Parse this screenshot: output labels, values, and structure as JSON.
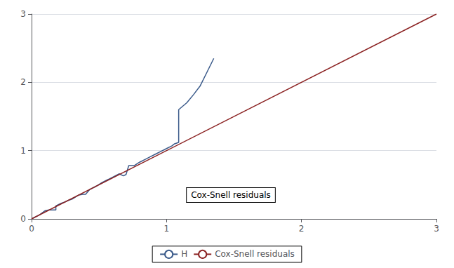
{
  "chart_data": {
    "type": "line",
    "series": [
      {
        "name": "H",
        "color": "#3a5a8a",
        "x": [
          0.0,
          0.06,
          0.1,
          0.13,
          0.18,
          0.18,
          0.22,
          0.25,
          0.27,
          0.3,
          0.35,
          0.38,
          0.4,
          0.43,
          0.46,
          0.48,
          0.52,
          0.55,
          0.58,
          0.62,
          0.65,
          0.68,
          0.7,
          0.72,
          0.74,
          0.76,
          0.8,
          0.84,
          0.88,
          0.92,
          0.96,
          1.0,
          1.04,
          1.06,
          1.09,
          1.09,
          1.15,
          1.2,
          1.25,
          1.3,
          1.35
        ],
        "values": [
          0.0,
          0.06,
          0.12,
          0.13,
          0.13,
          0.19,
          0.23,
          0.25,
          0.27,
          0.29,
          0.35,
          0.36,
          0.36,
          0.43,
          0.46,
          0.48,
          0.53,
          0.56,
          0.59,
          0.63,
          0.66,
          0.63,
          0.65,
          0.78,
          0.78,
          0.78,
          0.83,
          0.87,
          0.91,
          0.95,
          0.99,
          1.03,
          1.07,
          1.1,
          1.12,
          1.6,
          1.7,
          1.82,
          1.95,
          2.15,
          2.35
        ]
      },
      {
        "name": "Cox-Snell residuals",
        "color": "#8B2222",
        "x": [
          0,
          3
        ],
        "values": [
          0,
          3
        ]
      }
    ],
    "xlim": [
      0,
      3
    ],
    "xticks": [
      0,
      1,
      2,
      3
    ],
    "ylim": [
      0,
      3
    ],
    "yticks": [
      0,
      1,
      2,
      3
    ],
    "grid": "y",
    "legend": "bottom",
    "annotations": [
      {
        "text": "Cox-Snell residuals",
        "x": 1.15,
        "y": 0.35
      }
    ]
  }
}
